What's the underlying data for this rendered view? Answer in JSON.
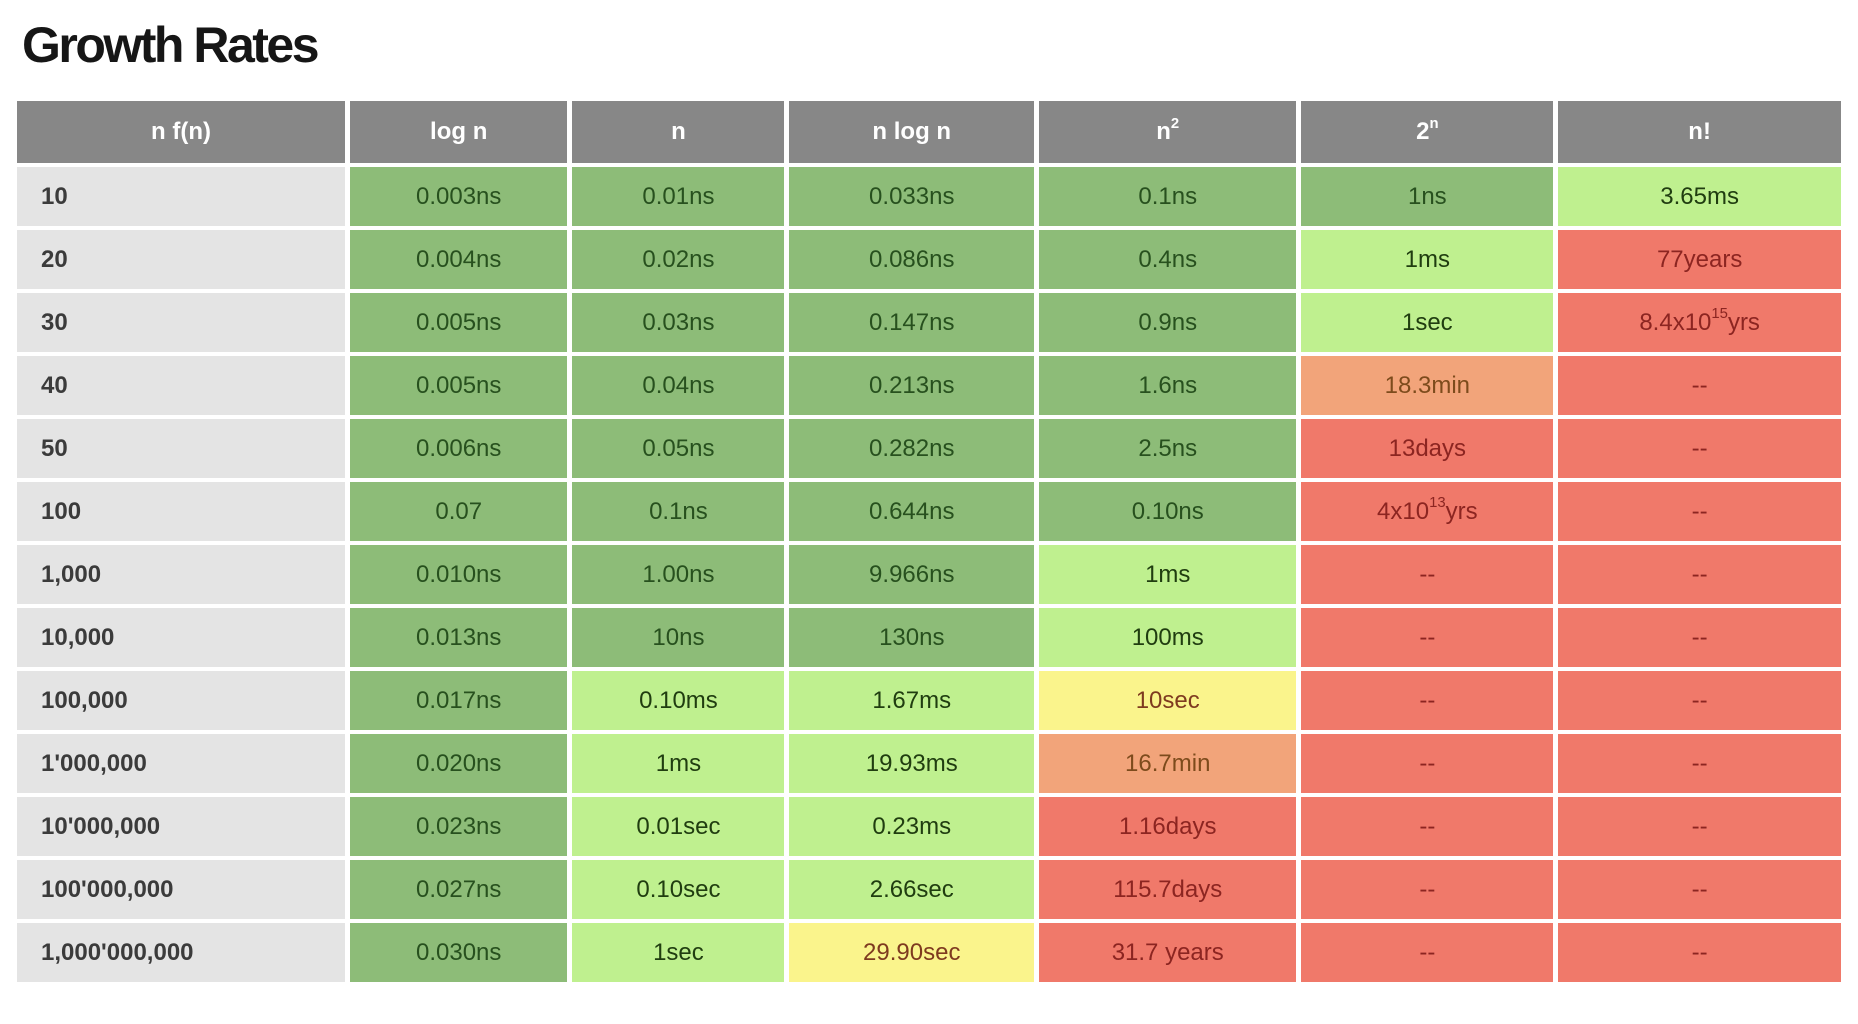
{
  "page_title": "Growth Rates",
  "chart_data": {
    "type": "table",
    "title": "Growth Rates",
    "columns": [
      {
        "text": "n f(n)"
      },
      {
        "text": "log n"
      },
      {
        "text": "n"
      },
      {
        "text": "n log n"
      },
      {
        "text": "n",
        "sup": "2"
      },
      {
        "text": "2",
        "sup": "n"
      },
      {
        "text": "n!"
      }
    ],
    "rows": [
      {
        "label": "10",
        "cells": [
          {
            "t": "0.003ns",
            "tone": "green"
          },
          {
            "t": "0.01ns",
            "tone": "green"
          },
          {
            "t": "0.033ns",
            "tone": "green"
          },
          {
            "t": "0.1ns",
            "tone": "green"
          },
          {
            "t": "1ns",
            "tone": "green"
          },
          {
            "t": "3.65ms",
            "tone": "lightgreen"
          }
        ]
      },
      {
        "label": "20",
        "cells": [
          {
            "t": "0.004ns",
            "tone": "green"
          },
          {
            "t": "0.02ns",
            "tone": "green"
          },
          {
            "t": "0.086ns",
            "tone": "green"
          },
          {
            "t": "0.4ns",
            "tone": "green"
          },
          {
            "t": "1ms",
            "tone": "lightgreen"
          },
          {
            "t": "77years",
            "tone": "red"
          }
        ]
      },
      {
        "label": "30",
        "cells": [
          {
            "t": "0.005ns",
            "tone": "green"
          },
          {
            "t": "0.03ns",
            "tone": "green"
          },
          {
            "t": "0.147ns",
            "tone": "green"
          },
          {
            "t": "0.9ns",
            "tone": "green"
          },
          {
            "t": "1sec",
            "tone": "lightgreen"
          },
          {
            "t": "8.4x10",
            "sup": "15",
            "suf": "yrs",
            "tone": "red"
          }
        ]
      },
      {
        "label": "40",
        "cells": [
          {
            "t": "0.005ns",
            "tone": "green"
          },
          {
            "t": "0.04ns",
            "tone": "green"
          },
          {
            "t": "0.213ns",
            "tone": "green"
          },
          {
            "t": "1.6ns",
            "tone": "green"
          },
          {
            "t": "18.3min",
            "tone": "orange"
          },
          {
            "t": "--",
            "tone": "red"
          }
        ]
      },
      {
        "label": "50",
        "cells": [
          {
            "t": "0.006ns",
            "tone": "green"
          },
          {
            "t": "0.05ns",
            "tone": "green"
          },
          {
            "t": "0.282ns",
            "tone": "green"
          },
          {
            "t": "2.5ns",
            "tone": "green"
          },
          {
            "t": "13days",
            "tone": "red"
          },
          {
            "t": "--",
            "tone": "red"
          }
        ]
      },
      {
        "label": "100",
        "cells": [
          {
            "t": "0.07",
            "tone": "green"
          },
          {
            "t": "0.1ns",
            "tone": "green"
          },
          {
            "t": "0.644ns",
            "tone": "green"
          },
          {
            "t": "0.10ns",
            "tone": "green"
          },
          {
            "t": "4x10",
            "sup": "13",
            "suf": "yrs",
            "tone": "red"
          },
          {
            "t": "--",
            "tone": "red"
          }
        ]
      },
      {
        "label": "1,000",
        "cells": [
          {
            "t": "0.010ns",
            "tone": "green"
          },
          {
            "t": "1.00ns",
            "tone": "green"
          },
          {
            "t": "9.966ns",
            "tone": "green"
          },
          {
            "t": "1ms",
            "tone": "lightgreen"
          },
          {
            "t": "--",
            "tone": "red"
          },
          {
            "t": "--",
            "tone": "red"
          }
        ]
      },
      {
        "label": "10,000",
        "cells": [
          {
            "t": "0.013ns",
            "tone": "green"
          },
          {
            "t": "10ns",
            "tone": "green"
          },
          {
            "t": "130ns",
            "tone": "green"
          },
          {
            "t": "100ms",
            "tone": "lightgreen"
          },
          {
            "t": "--",
            "tone": "red"
          },
          {
            "t": "--",
            "tone": "red"
          }
        ]
      },
      {
        "label": "100,000",
        "cells": [
          {
            "t": "0.017ns",
            "tone": "green"
          },
          {
            "t": "0.10ms",
            "tone": "lightgreen"
          },
          {
            "t": "1.67ms",
            "tone": "lightgreen"
          },
          {
            "t": "10sec",
            "tone": "yellow"
          },
          {
            "t": "--",
            "tone": "red"
          },
          {
            "t": "--",
            "tone": "red"
          }
        ]
      },
      {
        "label": "1'000,000",
        "cells": [
          {
            "t": "0.020ns",
            "tone": "green"
          },
          {
            "t": "1ms",
            "tone": "lightgreen"
          },
          {
            "t": "19.93ms",
            "tone": "lightgreen"
          },
          {
            "t": "16.7min",
            "tone": "orange"
          },
          {
            "t": "--",
            "tone": "red"
          },
          {
            "t": "--",
            "tone": "red"
          }
        ]
      },
      {
        "label": "10'000,000",
        "cells": [
          {
            "t": "0.023ns",
            "tone": "green"
          },
          {
            "t": "0.01sec",
            "tone": "lightgreen"
          },
          {
            "t": "0.23ms",
            "tone": "lightgreen"
          },
          {
            "t": "1.16days",
            "tone": "red"
          },
          {
            "t": "--",
            "tone": "red"
          },
          {
            "t": "--",
            "tone": "red"
          }
        ]
      },
      {
        "label": "100'000,000",
        "cells": [
          {
            "t": "0.027ns",
            "tone": "green"
          },
          {
            "t": "0.10sec",
            "tone": "lightgreen"
          },
          {
            "t": "2.66sec",
            "tone": "lightgreen"
          },
          {
            "t": "115.7days",
            "tone": "red"
          },
          {
            "t": "--",
            "tone": "red"
          },
          {
            "t": "--",
            "tone": "red"
          }
        ]
      },
      {
        "label": "1,000'000,000",
        "cells": [
          {
            "t": "0.030ns",
            "tone": "green"
          },
          {
            "t": "1sec",
            "tone": "lightgreen"
          },
          {
            "t": "29.90sec",
            "tone": "yellow"
          },
          {
            "t": "31.7 years",
            "tone": "red"
          },
          {
            "t": "--",
            "tone": "red"
          },
          {
            "t": "--",
            "tone": "red"
          }
        ]
      }
    ],
    "tone_colors": {
      "green": {
        "bg": "#8dbc78",
        "text": "#27501e"
      },
      "lightgreen": {
        "bg": "#bff08f",
        "text": "#203d10"
      },
      "yellow": {
        "bg": "#faf48c",
        "text": "#7e3a1f"
      },
      "orange": {
        "bg": "#f2a47a",
        "text": "#7d4b1c"
      },
      "red": {
        "bg": "#f0796a",
        "text": "#8c2521"
      }
    },
    "header_style": {
      "bg": "#878787",
      "text": "#ffffff"
    },
    "row_label_style": {
      "bg": "#e4e4e4",
      "text": "#3b3b3b"
    },
    "layout": {
      "grid": "separated-cells",
      "legend": "none"
    }
  }
}
